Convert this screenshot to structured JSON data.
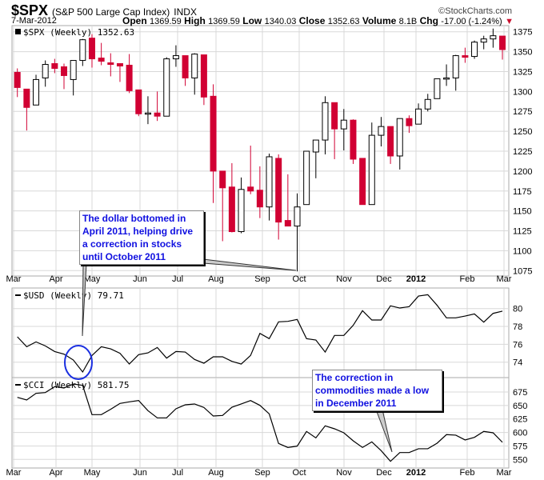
{
  "header": {
    "symbol": "$SPX",
    "name": "(S&P 500 Large Cap Index)",
    "exchange": "INDX",
    "copyright": "©StockCharts.com",
    "date": "7-Mar-2012",
    "open_label": "Open",
    "open": "1369.59",
    "high_label": "High",
    "high": "1369.59",
    "low_label": "Low",
    "low": "1340.03",
    "close_label": "Close",
    "close": "1352.63",
    "volume_label": "Volume",
    "volume": "8.1B",
    "chg_label": "Chg",
    "chg": "-17.00 (-1.24%)",
    "chg_direction_icon": "triangle-down-icon"
  },
  "colors": {
    "down": "#d10033",
    "up": "#ffffff",
    "line": "#000000",
    "grid": "#d8d8d8",
    "annotation_text": "#1010e0",
    "circle": "#1a2fe0"
  },
  "chart_data": [
    {
      "type": "candlestick",
      "legend": "$SPX (Weekly) 1352.63",
      "ylim": [
        1065,
        1385
      ],
      "yticks": [
        1075,
        1100,
        1125,
        1150,
        1175,
        1200,
        1225,
        1250,
        1275,
        1300,
        1325,
        1350,
        1375
      ],
      "xticks": [
        "Mar",
        "Apr",
        "May",
        "Jun",
        "Jul",
        "Aug",
        "Sep",
        "Oct",
        "Nov",
        "Dec",
        "2012",
        "Feb",
        "Mar"
      ],
      "grid": true,
      "ohlc": [
        [
          1324,
          1329,
          1293,
          1305
        ],
        [
          1303,
          1303,
          1251,
          1280
        ],
        [
          1283,
          1321,
          1283,
          1315
        ],
        [
          1317,
          1339,
          1306,
          1334
        ],
        [
          1335,
          1341,
          1323,
          1329
        ],
        [
          1331,
          1335,
          1303,
          1320
        ],
        [
          1315,
          1339,
          1295,
          1339
        ],
        [
          1339,
          1366,
          1332,
          1365
        ],
        [
          1367,
          1372,
          1330,
          1341
        ],
        [
          1342,
          1361,
          1333,
          1338
        ],
        [
          1336,
          1348,
          1319,
          1334
        ],
        [
          1335,
          1335,
          1312,
          1332
        ],
        [
          1333,
          1347,
          1298,
          1301
        ],
        [
          1302,
          1302,
          1269,
          1272
        ],
        [
          1272,
          1294,
          1259,
          1273
        ],
        [
          1273,
          1300,
          1263,
          1269
        ],
        [
          1269,
          1343,
          1269,
          1341
        ],
        [
          1341,
          1358,
          1331,
          1345
        ],
        [
          1345,
          1345,
          1307,
          1317
        ],
        [
          1317,
          1348,
          1296,
          1347
        ],
        [
          1346,
          1346,
          1283,
          1293
        ],
        [
          1294,
          1309,
          1160,
          1200
        ],
        [
          1200,
          1200,
          1112,
          1179
        ],
        [
          1180,
          1210,
          1123,
          1124
        ],
        [
          1124,
          1192,
          1122,
          1177
        ],
        [
          1180,
          1232,
          1171,
          1175
        ],
        [
          1176,
          1206,
          1141,
          1155
        ],
        [
          1155,
          1222,
          1138,
          1218
        ],
        [
          1216,
          1221,
          1114,
          1136
        ],
        [
          1138,
          1196,
          1131,
          1131
        ],
        [
          1131,
          1172,
          1074,
          1155
        ],
        [
          1158,
          1225,
          1158,
          1225
        ],
        [
          1224,
          1239,
          1191,
          1239
        ],
        [
          1239,
          1294,
          1221,
          1286
        ],
        [
          1286,
          1286,
          1215,
          1253
        ],
        [
          1253,
          1278,
          1226,
          1264
        ],
        [
          1264,
          1265,
          1209,
          1215
        ],
        [
          1216,
          1216,
          1158,
          1158
        ],
        [
          1158,
          1261,
          1158,
          1245
        ],
        [
          1245,
          1268,
          1231,
          1256
        ],
        [
          1256,
          1256,
          1209,
          1219
        ],
        [
          1219,
          1266,
          1202,
          1266
        ],
        [
          1266,
          1270,
          1248,
          1257
        ],
        [
          1259,
          1285,
          1259,
          1278
        ],
        [
          1278,
          1297,
          1275,
          1290
        ],
        [
          1291,
          1316,
          1291,
          1316
        ],
        [
          1316,
          1334,
          1307,
          1317
        ],
        [
          1317,
          1346,
          1301,
          1345
        ],
        [
          1345,
          1355,
          1336,
          1343
        ],
        [
          1344,
          1364,
          1341,
          1362
        ],
        [
          1362,
          1370,
          1353,
          1366
        ],
        [
          1366,
          1379,
          1355,
          1370
        ],
        [
          1369.59,
          1369.59,
          1340.03,
          1352.63
        ]
      ],
      "annotation": "The dollar bottomed in April 2011, helping drive a correction in stocks until October 2011"
    },
    {
      "type": "line",
      "legend": "$USD (Weekly) 79.71",
      "ylim": [
        72.4,
        82.7
      ],
      "yticks": [
        74,
        76,
        78,
        80
      ],
      "grid": true,
      "values": [
        76.84,
        75.73,
        76.27,
        75.82,
        75.19,
        74.9,
        74.24,
        72.9,
        74.75,
        75.73,
        75.49,
        74.99,
        73.79,
        74.84,
        75.04,
        75.64,
        74.45,
        75.19,
        75.13,
        74.3,
        73.88,
        74.6,
        74.6,
        74.09,
        73.79,
        74.75,
        77.22,
        76.63,
        78.51,
        78.57,
        78.78,
        76.63,
        76.48,
        75.13,
        76.99,
        76.99,
        78.12,
        79.76,
        78.72,
        78.72,
        80.3,
        80.06,
        80.21,
        81.4,
        81.55,
        80.36,
        78.96,
        78.96,
        79.16,
        79.4,
        78.48,
        79.46,
        79.71
      ]
    },
    {
      "type": "line",
      "legend": "$CCI (Weekly) 581.75",
      "ylim": [
        538,
        700
      ],
      "yticks": [
        550,
        575,
        600,
        625,
        650,
        675
      ],
      "grid": true,
      "xticks": [
        "Mar",
        "Apr",
        "May",
        "Jun",
        "Jul",
        "Aug",
        "Sep",
        "Oct",
        "Nov",
        "Dec",
        "2012",
        "Feb",
        "Mar"
      ],
      "values": [
        665.1,
        660.2,
        672.5,
        674,
        684.9,
        682.4,
        689.8,
        687.4,
        633,
        633,
        642.9,
        653.8,
        656.7,
        659.2,
        640.4,
        627.1,
        627.1,
        643.9,
        651.3,
        652.8,
        646.3,
        630.5,
        631.5,
        646.8,
        652.8,
        659.2,
        650.3,
        634.5,
        579.6,
        572.2,
        574.7,
        601.9,
        590,
        612.3,
        606.8,
        599.4,
        584.6,
        572.2,
        582.6,
        566.3,
        546.5,
        562.8,
        562.8,
        569.8,
        569.8,
        580.1,
        596,
        595,
        586.1,
        591,
        601.9,
        599.4,
        581.75
      ],
      "annotation": "The correction in commodities made a low in December 2011"
    }
  ]
}
